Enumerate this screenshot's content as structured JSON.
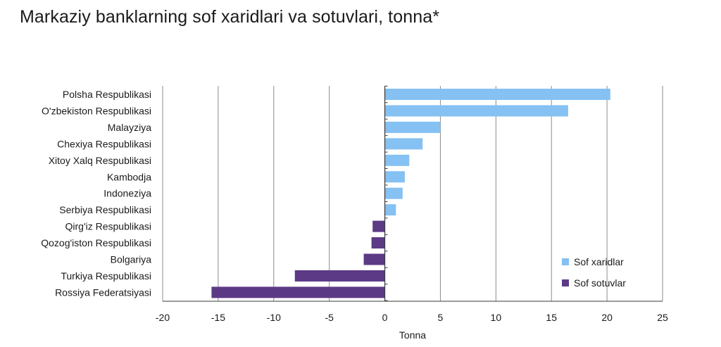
{
  "chart_data": {
    "type": "bar",
    "orientation": "horizontal",
    "title": "Markaziy banklarning sof xaridlari va sotuvlari, tonna*",
    "xlabel": "Tonna",
    "ylabel": "",
    "xlim": [
      -20,
      25
    ],
    "xticks": [
      -20,
      -15,
      -10,
      -5,
      0,
      5,
      10,
      15,
      20,
      25
    ],
    "xtick_labels": [
      "-20",
      "-15",
      "-10",
      "-5",
      "0",
      "5",
      "10",
      "15",
      "20",
      "25"
    ],
    "grid": "vertical",
    "legend_position": "bottom-right",
    "categories": [
      "Polsha Respublikasi",
      "O'zbekiston Respublikasi",
      "Malayziya",
      "Chexiya Respublikasi",
      "Xitoy Xalq Respublikasi",
      "Kambodja",
      "Indoneziya",
      "Serbiya Respublikasi",
      "Qirg'iz Respublikasi",
      "Qozog'iston Respublikasi",
      "Bolgariya",
      "Turkiya Respublikasi",
      "Rossiya Federatsiyasi"
    ],
    "values": [
      20.3,
      16.5,
      5.0,
      3.4,
      2.2,
      1.8,
      1.6,
      1.0,
      -1.1,
      -1.2,
      -1.9,
      -8.1,
      -15.6
    ],
    "series": [
      {
        "name": "Sof xaridlar",
        "color": "#85c1f2"
      },
      {
        "name": "Sof sotuvlar",
        "color": "#5c3a86"
      }
    ]
  },
  "colors": {
    "positive": "#85c1f2",
    "negative": "#5c3a86",
    "grid": "#8c8c8c",
    "axis": "#3a3a3a"
  }
}
